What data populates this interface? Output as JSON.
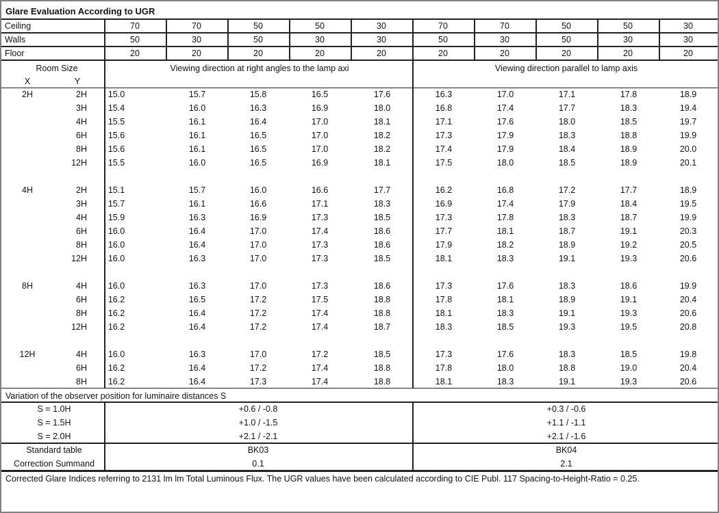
{
  "title": "Glare Evaluation According to UGR",
  "reflectances": [
    {
      "label": "Ceiling",
      "values": [
        "70",
        "70",
        "50",
        "50",
        "30",
        "70",
        "70",
        "50",
        "50",
        "30"
      ]
    },
    {
      "label": "Walls",
      "values": [
        "50",
        "30",
        "50",
        "30",
        "30",
        "50",
        "30",
        "50",
        "30",
        "30"
      ]
    },
    {
      "label": "Floor",
      "values": [
        "20",
        "20",
        "20",
        "20",
        "20",
        "20",
        "20",
        "20",
        "20",
        "20"
      ]
    }
  ],
  "header": {
    "room_size": "Room Size",
    "x": "X",
    "y": "Y",
    "right_angles": "Viewing direction at right angles to the lamp axi",
    "parallel": "Viewing direction parallel to lamp axis"
  },
  "groups": [
    {
      "x": "2H",
      "rows": [
        {
          "y": "2H",
          "values": [
            "15.0",
            "15.7",
            "15.8",
            "16.5",
            "17.6",
            "16.3",
            "17.0",
            "17.1",
            "17.8",
            "18.9"
          ]
        },
        {
          "y": "3H",
          "values": [
            "15.4",
            "16.0",
            "16.3",
            "16.9",
            "18.0",
            "16.8",
            "17.4",
            "17.7",
            "18.3",
            "19.4"
          ]
        },
        {
          "y": "4H",
          "values": [
            "15.5",
            "16.1",
            "16.4",
            "17.0",
            "18.1",
            "17.1",
            "17.6",
            "18.0",
            "18.5",
            "19.7"
          ]
        },
        {
          "y": "6H",
          "values": [
            "15.6",
            "16.1",
            "16.5",
            "17.0",
            "18.2",
            "17.3",
            "17.9",
            "18.3",
            "18.8",
            "19.9"
          ]
        },
        {
          "y": "8H",
          "values": [
            "15.6",
            "16.1",
            "16.5",
            "17.0",
            "18.2",
            "17.4",
            "17.9",
            "18.4",
            "18.9",
            "20.0"
          ]
        },
        {
          "y": "12H",
          "values": [
            "15.5",
            "16.0",
            "16.5",
            "16.9",
            "18.1",
            "17.5",
            "18.0",
            "18.5",
            "18.9",
            "20.1"
          ]
        }
      ]
    },
    {
      "x": "4H",
      "rows": [
        {
          "y": "2H",
          "values": [
            "15.1",
            "15.7",
            "16.0",
            "16.6",
            "17.7",
            "16.2",
            "16.8",
            "17.2",
            "17.7",
            "18.9"
          ]
        },
        {
          "y": "3H",
          "values": [
            "15.7",
            "16.1",
            "16.6",
            "17.1",
            "18.3",
            "16.9",
            "17.4",
            "17.9",
            "18.4",
            "19.5"
          ]
        },
        {
          "y": "4H",
          "values": [
            "15.9",
            "16.3",
            "16.9",
            "17.3",
            "18.5",
            "17.3",
            "17.8",
            "18.3",
            "18.7",
            "19.9"
          ]
        },
        {
          "y": "6H",
          "values": [
            "16.0",
            "16.4",
            "17.0",
            "17.4",
            "18.6",
            "17.7",
            "18.1",
            "18.7",
            "19.1",
            "20.3"
          ]
        },
        {
          "y": "8H",
          "values": [
            "16.0",
            "16.4",
            "17.0",
            "17.3",
            "18.6",
            "17.9",
            "18.2",
            "18.9",
            "19.2",
            "20.5"
          ]
        },
        {
          "y": "12H",
          "values": [
            "16.0",
            "16.3",
            "17.0",
            "17.3",
            "18.5",
            "18.1",
            "18.3",
            "19.1",
            "19.3",
            "20.6"
          ]
        }
      ]
    },
    {
      "x": "8H",
      "rows": [
        {
          "y": "4H",
          "values": [
            "16.0",
            "16.3",
            "17.0",
            "17.3",
            "18.6",
            "17.3",
            "17.6",
            "18.3",
            "18.6",
            "19.9"
          ]
        },
        {
          "y": "6H",
          "values": [
            "16.2",
            "16.5",
            "17.2",
            "17.5",
            "18.8",
            "17.8",
            "18.1",
            "18.9",
            "19.1",
            "20.4"
          ]
        },
        {
          "y": "8H",
          "values": [
            "16.2",
            "16.4",
            "17.2",
            "17.4",
            "18.8",
            "18.1",
            "18.3",
            "19.1",
            "19.3",
            "20.6"
          ]
        },
        {
          "y": "12H",
          "values": [
            "16.2",
            "16.4",
            "17.2",
            "17.4",
            "18.7",
            "18.3",
            "18.5",
            "19.3",
            "19.5",
            "20.8"
          ]
        }
      ]
    },
    {
      "x": "12H",
      "rows": [
        {
          "y": "4H",
          "values": [
            "16.0",
            "16.3",
            "17.0",
            "17.2",
            "18.5",
            "17.3",
            "17.6",
            "18.3",
            "18.5",
            "19.8"
          ]
        },
        {
          "y": "6H",
          "values": [
            "16.2",
            "16.4",
            "17.2",
            "17.4",
            "18.8",
            "17.8",
            "18.0",
            "18.8",
            "19.0",
            "20.4"
          ]
        },
        {
          "y": "8H",
          "values": [
            "16.2",
            "16.4",
            "17.3",
            "17.4",
            "18.8",
            "18.1",
            "18.3",
            "19.1",
            "19.3",
            "20.6"
          ]
        }
      ]
    }
  ],
  "variation": {
    "title": "Variation of the observer position for luminaire distances S",
    "rows": [
      {
        "label": "S = 1.0H",
        "left": "+0.6 / -0.8",
        "right": "+0.3 / -0.6"
      },
      {
        "label": "S = 1.5H",
        "left": "+1.0 / -1.5",
        "right": "+1.1 / -1.1"
      },
      {
        "label": "S = 2.0H",
        "left": "+2.1 / -2.1",
        "right": "+2.1 / -1.6"
      }
    ]
  },
  "standard": [
    {
      "label": "Standard table",
      "left": "BK03",
      "right": "BK04"
    },
    {
      "label": "Correction Summand",
      "left": "0.1",
      "right": "2.1"
    }
  ],
  "footer": "Corrected Glare Indices referring to 2131 lm lm Total Luminous Flux. The UGR values have been calculated according to CIE Publ. 117    Spacing-to-Height-Ratio = 0.25."
}
